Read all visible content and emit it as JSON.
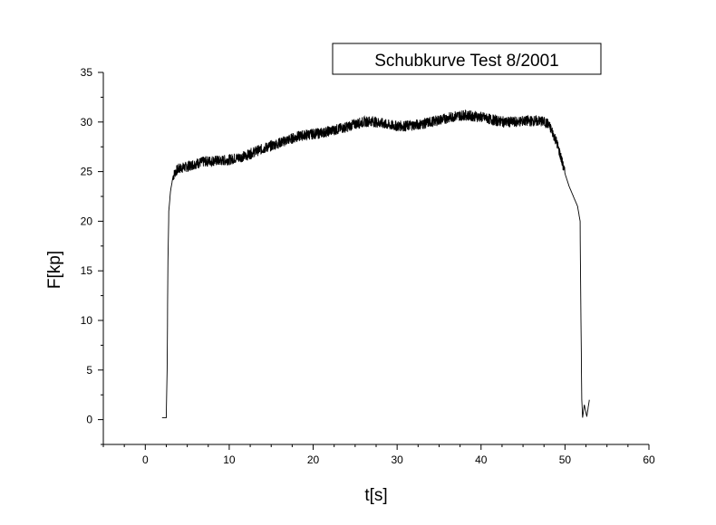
{
  "chart_data": {
    "type": "line",
    "title": "Schubkurve Test 8/2001",
    "xlabel": "t[s]",
    "ylabel": "F[kp]",
    "xlim": [
      -5,
      60
    ],
    "ylim": [
      -2.5,
      35
    ],
    "x_ticks": [
      0,
      10,
      20,
      30,
      40,
      50,
      60
    ],
    "x_tick_labels": [
      "0",
      "10",
      "20",
      "30",
      "40",
      "50",
      "60"
    ],
    "y_ticks": [
      0,
      5,
      10,
      15,
      20,
      25,
      30,
      35
    ],
    "y_tick_labels": [
      "0",
      "5",
      "10",
      "15",
      "20",
      "25",
      "30",
      "35"
    ],
    "grid": false,
    "legend": "none",
    "line_color": "#000000",
    "series": [
      {
        "x": [
          2.0,
          2.5,
          2.6,
          2.7,
          2.8,
          3.0,
          3.3,
          3.6,
          4.0,
          5,
          6,
          7,
          8,
          9,
          10,
          11,
          12,
          13,
          14,
          15,
          16,
          17,
          18,
          19,
          20,
          21,
          22,
          23,
          24,
          25,
          26,
          27,
          28,
          29,
          30,
          31,
          32,
          33,
          34,
          35,
          36,
          37,
          38,
          39,
          40,
          41,
          42,
          43,
          44,
          45,
          46,
          47,
          47.5,
          48,
          48.5,
          49,
          49.5,
          50,
          50.5,
          51,
          51.5,
          51.8,
          51.9,
          52.0,
          52.1,
          52.3,
          52.6,
          52.9
        ],
        "y": [
          0.2,
          0.2,
          5,
          16,
          21,
          23,
          24.5,
          25,
          25.3,
          25.5,
          25.8,
          26,
          26.1,
          26.1,
          26.2,
          26.4,
          26.6,
          27,
          27.3,
          27.6,
          27.9,
          28.2,
          28.5,
          28.7,
          28.8,
          28.9,
          29.1,
          29.3,
          29.5,
          29.8,
          30.0,
          30.1,
          29.9,
          29.7,
          29.6,
          29.6,
          29.7,
          29.8,
          30.0,
          30.2,
          30.4,
          30.6,
          30.7,
          30.6,
          30.5,
          30.3,
          30.1,
          30.0,
          30.0,
          30.1,
          30.1,
          30.1,
          30.0,
          29.8,
          29.0,
          28.0,
          26.5,
          24.8,
          23.5,
          22.5,
          21.5,
          20.0,
          10.0,
          2.0,
          0.2,
          1.5,
          0.3,
          2.0
        ]
      }
    ]
  }
}
